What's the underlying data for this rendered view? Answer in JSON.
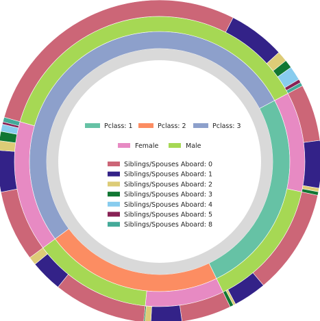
{
  "chart_data": {
    "type": "sunburst",
    "title": "",
    "ring_order": [
      "Pclass",
      "Sex",
      "Siblings/Spouses Aboard"
    ],
    "start_angle_deg": 62,
    "legends": {
      "pclass": [
        {
          "label": "Pclass: 1",
          "color": "#66c2a5"
        },
        {
          "label": "Pclass: 2",
          "color": "#fc8d62"
        },
        {
          "label": "Pclass: 3",
          "color": "#8da0cb"
        }
      ],
      "sex": [
        {
          "label": "Female",
          "color": "#e78ac3"
        },
        {
          "label": "Male",
          "color": "#a6d854"
        }
      ],
      "sibsp": [
        {
          "label": "Siblings/Spouses Aboard: 0",
          "color": "#cc6677"
        },
        {
          "label": "Siblings/Spouses Aboard: 1",
          "color": "#332288"
        },
        {
          "label": "Siblings/Spouses Aboard: 2",
          "color": "#ddcc77"
        },
        {
          "label": "Siblings/Spouses Aboard: 3",
          "color": "#117733"
        },
        {
          "label": "Siblings/Spouses Aboard: 4",
          "color": "#88ccee"
        },
        {
          "label": "Siblings/Spouses Aboard: 5",
          "color": "#882255"
        },
        {
          "label": "Siblings/Spouses Aboard: 8",
          "color": "#44aa99"
        }
      ]
    },
    "data": [
      {
        "pclass": "1",
        "sex": "Female",
        "sibsp": [
          {
            "k": "0",
            "v": 48
          },
          {
            "k": "1",
            "v": 40
          },
          {
            "k": "2",
            "v": 3
          },
          {
            "k": "3",
            "v": 3
          }
        ]
      },
      {
        "pclass": "1",
        "sex": "Male",
        "sibsp": [
          {
            "k": "0",
            "v": 89
          },
          {
            "k": "1",
            "v": 28
          },
          {
            "k": "2",
            "v": 2
          },
          {
            "k": "3",
            "v": 3
          }
        ]
      },
      {
        "pclass": "2",
        "sex": "Female",
        "sibsp": [
          {
            "k": "0",
            "v": 42
          },
          {
            "k": "1",
            "v": 26
          },
          {
            "k": "2",
            "v": 5
          },
          {
            "k": "3",
            "v": 1
          }
        ]
      },
      {
        "pclass": "2",
        "sex": "Male",
        "sibsp": [
          {
            "k": "0",
            "v": 78
          },
          {
            "k": "1",
            "v": 27
          },
          {
            "k": "2",
            "v": 7
          }
        ]
      },
      {
        "pclass": "3",
        "sex": "Female",
        "sibsp": [
          {
            "k": "0",
            "v": 60
          },
          {
            "k": "1",
            "v": 35
          },
          {
            "k": "2",
            "v": 8
          },
          {
            "k": "3",
            "v": 8
          },
          {
            "k": "4",
            "v": 6
          },
          {
            "k": "5",
            "v": 2
          },
          {
            "k": "8",
            "v": 4
          }
        ]
      },
      {
        "pclass": "3",
        "sex": "Male",
        "sibsp": [
          {
            "k": "0",
            "v": 237
          },
          {
            "k": "1",
            "v": 48
          },
          {
            "k": "2",
            "v": 9
          },
          {
            "k": "3",
            "v": 7
          },
          {
            "k": "4",
            "v": 12
          },
          {
            "k": "5",
            "v": 3
          },
          {
            "k": "8",
            "v": 3
          }
        ]
      }
    ]
  }
}
